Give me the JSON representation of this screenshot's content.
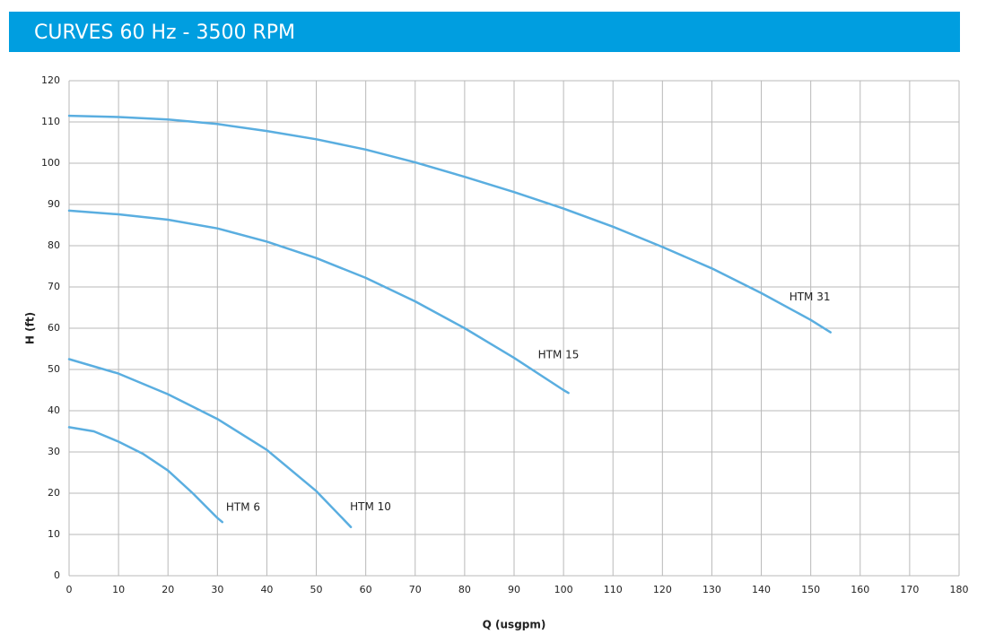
{
  "chart_data": {
    "type": "line",
    "title": "CURVES 60 Hz - 3500 RPM",
    "x_label": "Q (usgpm)",
    "y_label": "H (ft)",
    "xlim": [
      0,
      180
    ],
    "xticks": [
      0,
      10,
      20,
      30,
      40,
      50,
      60,
      70,
      80,
      90,
      100,
      110,
      120,
      130,
      140,
      150,
      160,
      170,
      180
    ],
    "ylim": [
      0,
      120
    ],
    "yticks": [
      0,
      10,
      20,
      30,
      40,
      50,
      60,
      70,
      80,
      90,
      100,
      110,
      120
    ],
    "grid": true,
    "series": [
      {
        "name": "HTM 31",
        "color": "#5aaee0",
        "x": [
          0,
          10,
          20,
          30,
          40,
          50,
          60,
          70,
          80,
          90,
          100,
          110,
          120,
          130,
          140,
          150,
          154
        ],
        "values": [
          111.5,
          111.2,
          110.6,
          109.5,
          107.8,
          105.8,
          103.3,
          100.2,
          96.7,
          93,
          89,
          84.6,
          79.7,
          74.5,
          68.5,
          62,
          59
        ]
      },
      {
        "name": "HTM 15",
        "color": "#5aaee0",
        "x": [
          0,
          10,
          20,
          30,
          40,
          50,
          60,
          70,
          80,
          90,
          100,
          101
        ],
        "values": [
          88.5,
          87.6,
          86.3,
          84.2,
          81,
          77,
          72.2,
          66.5,
          60,
          52.8,
          45,
          44.3
        ]
      },
      {
        "name": "HTM 10",
        "color": "#5aaee0",
        "x": [
          0,
          10,
          20,
          30,
          40,
          50,
          57
        ],
        "values": [
          52.5,
          49,
          44,
          38,
          30.5,
          20.5,
          11.8
        ]
      },
      {
        "name": "HTM 6",
        "color": "#5aaee0",
        "x": [
          0,
          5,
          10,
          15,
          20,
          25,
          30,
          31
        ],
        "values": [
          36,
          35,
          32.5,
          29.5,
          25.5,
          20,
          14,
          13
        ]
      }
    ]
  }
}
